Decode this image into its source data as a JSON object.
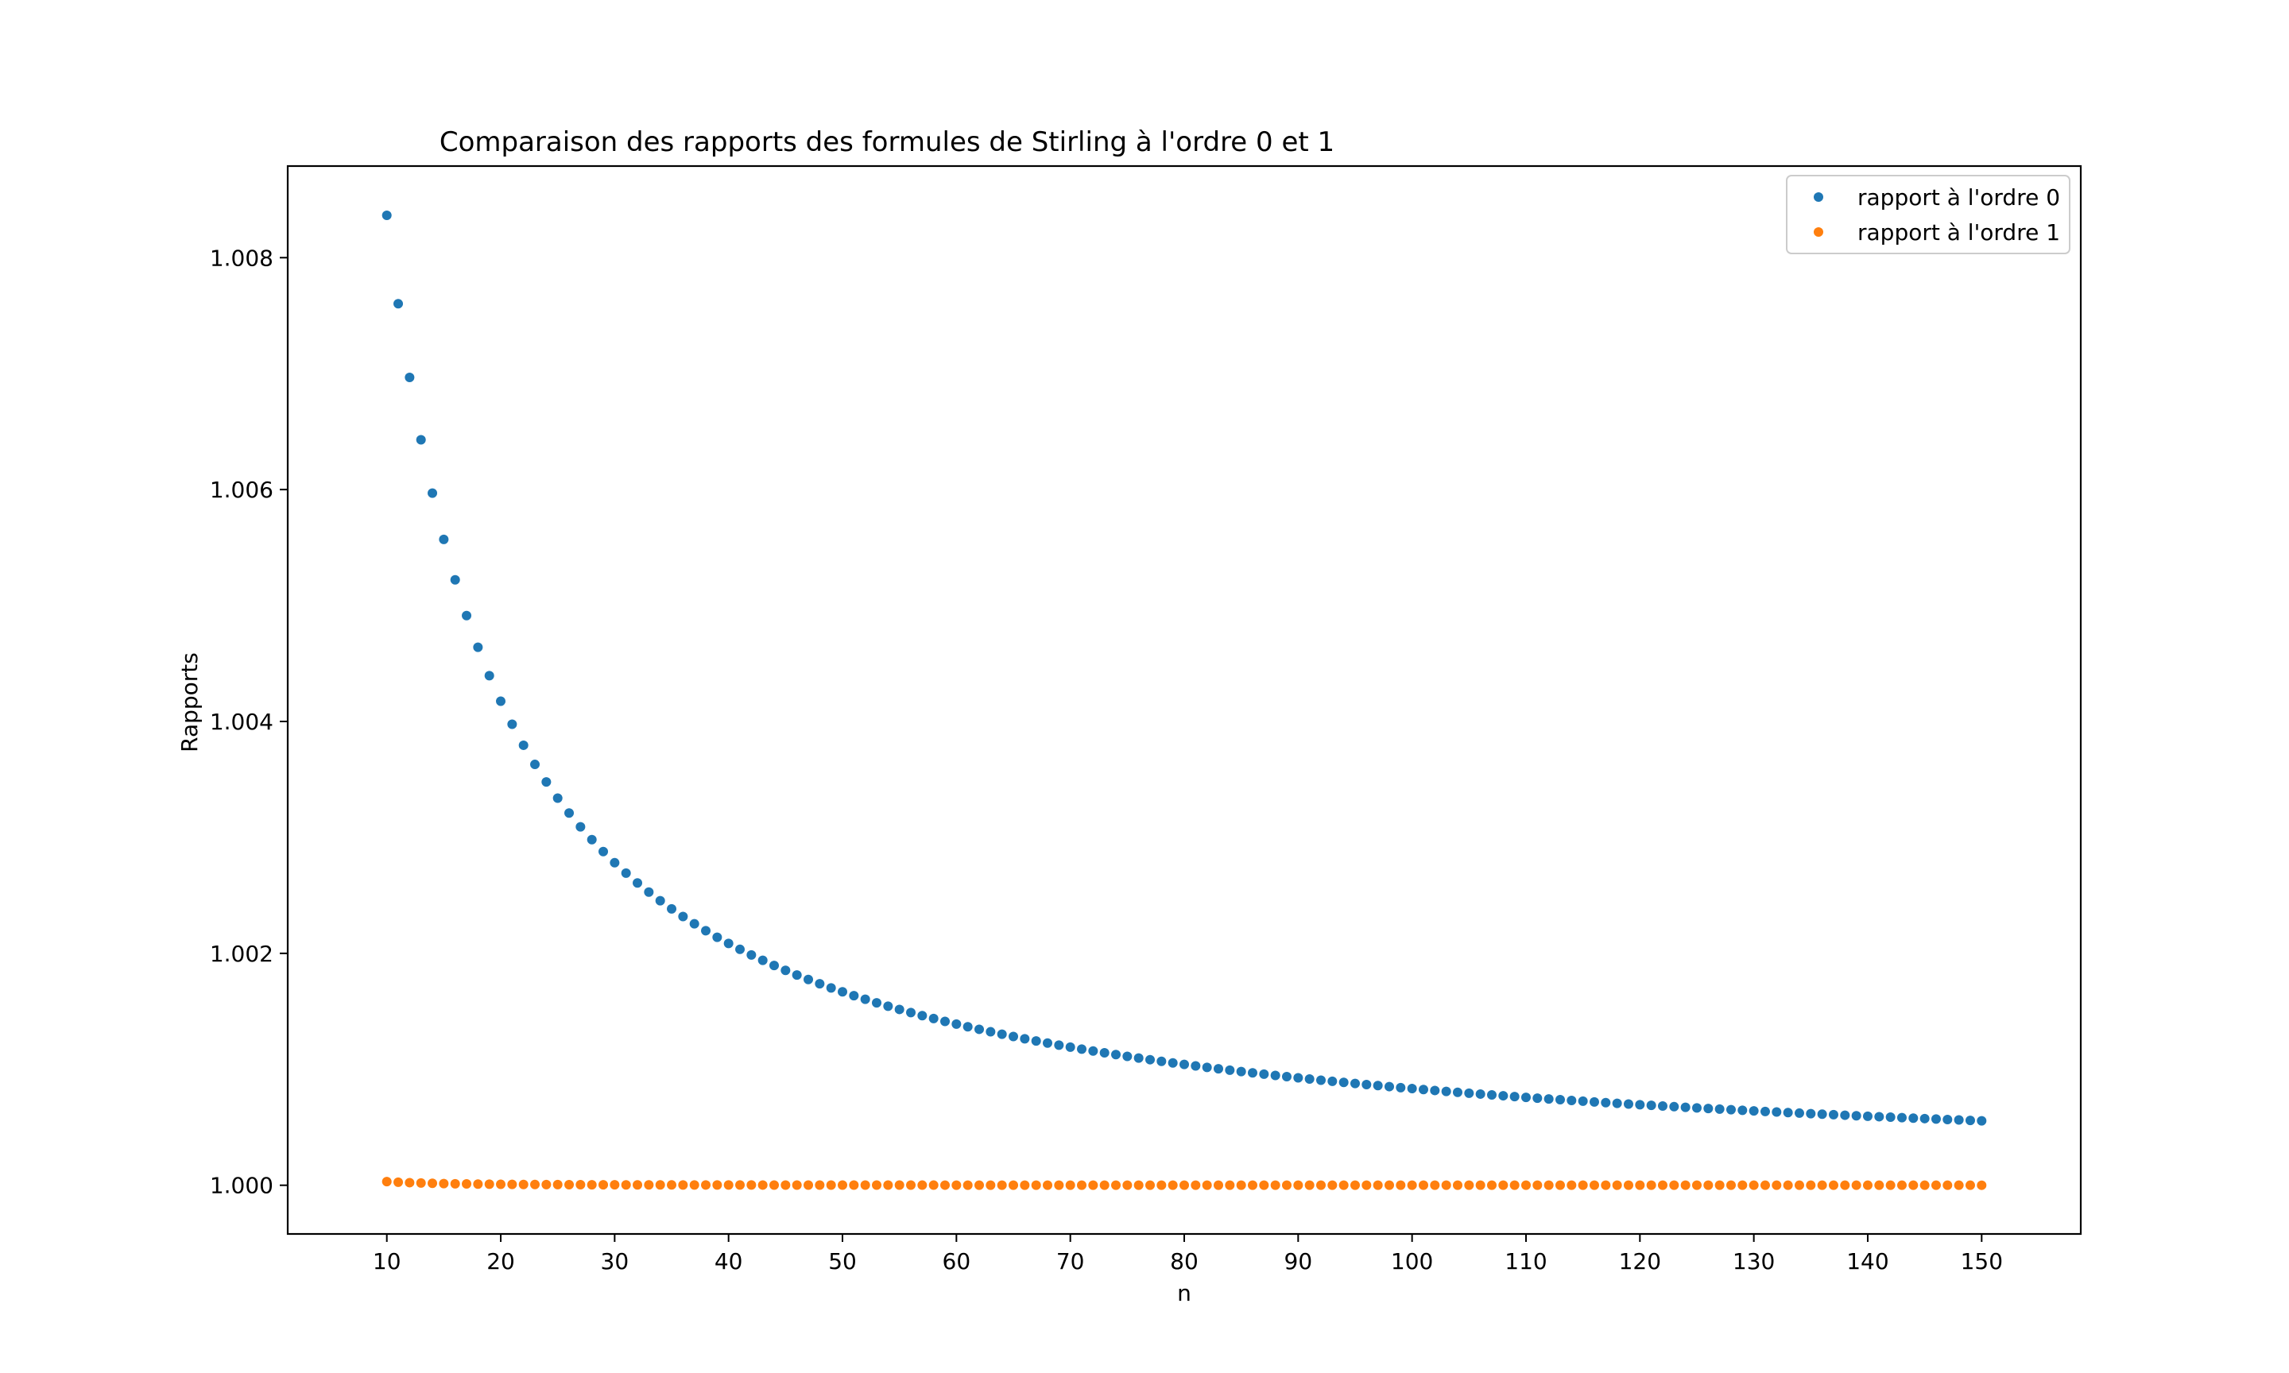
{
  "chart_data": {
    "type": "scatter",
    "title": "Comparaison des rapports des formules de Stirling à l'ordre 0 et 1",
    "xlabel": "n",
    "ylabel": "Rapports",
    "xlim": [
      1.3,
      158.7
    ],
    "ylim": [
      0.99958,
      1.00879
    ],
    "xticks": [
      10,
      20,
      30,
      40,
      50,
      60,
      70,
      80,
      90,
      100,
      110,
      120,
      130,
      140,
      150
    ],
    "xtick_labels": [
      "10",
      "20",
      "30",
      "40",
      "50",
      "60",
      "70",
      "80",
      "90",
      "100",
      "110",
      "120",
      "130",
      "140",
      "150"
    ],
    "yticks": [
      1.0,
      1.002,
      1.004,
      1.006,
      1.008
    ],
    "ytick_labels": [
      "1.000",
      "1.002",
      "1.004",
      "1.006",
      "1.008"
    ],
    "grid": false,
    "legend": "top-right",
    "n_range": [
      10,
      150
    ],
    "series": [
      {
        "name": "rapport à l'ordre 0",
        "color": "#1f77b4",
        "expression": "n! / (sqrt(2*pi*n) * (n/e)^n)"
      },
      {
        "name": "rapport à l'ordre 1",
        "color": "#ff7f0e",
        "expression": "n! / (sqrt(2*pi*n) * (n/e)^n * (1 + 1/(12n)))"
      }
    ]
  }
}
